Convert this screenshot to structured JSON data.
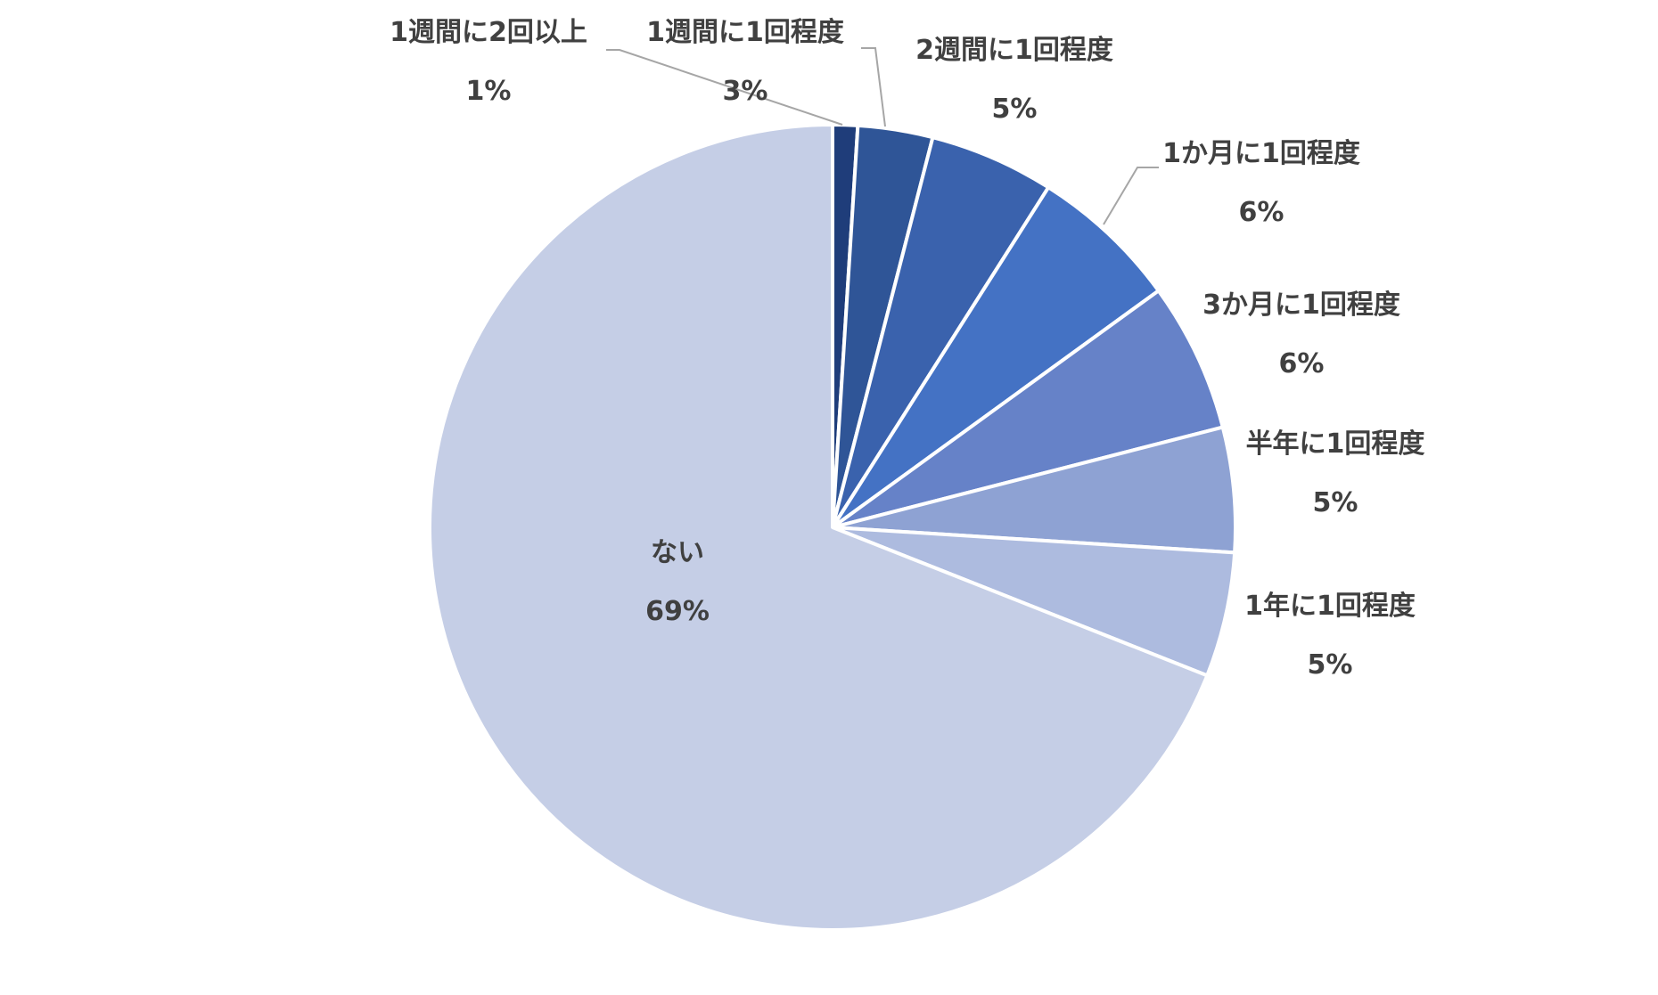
{
  "chart_data": {
    "type": "pie",
    "title": "",
    "start_angle_deg": 0,
    "direction": "clockwise",
    "slices": [
      {
        "label": "1週間に2回以上",
        "value": 1,
        "display": "1%",
        "color": "#1f3d7a"
      },
      {
        "label": "1週間に1回程度",
        "value": 3,
        "display": "3%",
        "color": "#2f5597"
      },
      {
        "label": "2週間に1回程度",
        "value": 5,
        "display": "5%",
        "color": "#3a62ad"
      },
      {
        "label": "1か月に1回程度",
        "value": 6,
        "display": "6%",
        "color": "#4472c4"
      },
      {
        "label": "3か月に1回程度",
        "value": 6,
        "display": "6%",
        "color": "#6682c8"
      },
      {
        "label": "半年に1回程度",
        "value": 5,
        "display": "5%",
        "color": "#8ea2d3"
      },
      {
        "label": "1年に1回程度",
        "value": 5,
        "display": "5%",
        "color": "#adbbdf"
      },
      {
        "label": "ない",
        "value": 69,
        "display": "69%",
        "color": "#c5cee6"
      }
    ]
  }
}
